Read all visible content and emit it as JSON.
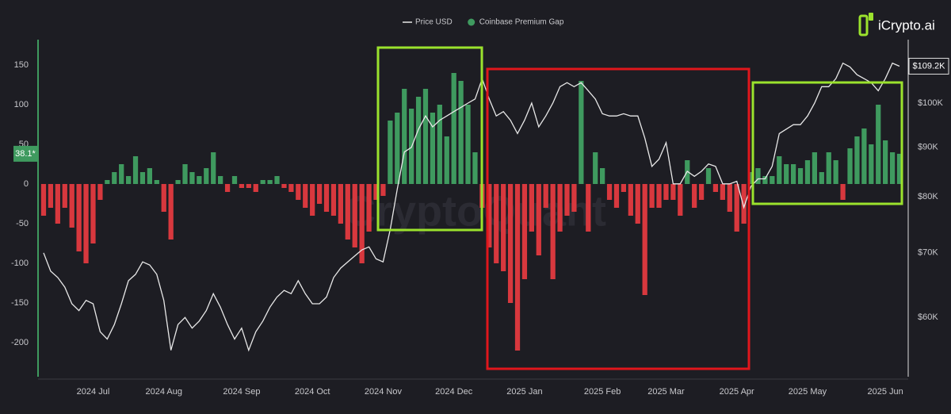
{
  "chart_data": {
    "type": "bar_line",
    "legend_position": "top",
    "logo": "iCrypto.ai",
    "watermark": "CryptoQuant",
    "categories": [
      null,
      null,
      null,
      null,
      null,
      null,
      null,
      "2024 Jul",
      null,
      null,
      null,
      null,
      null,
      null,
      null,
      null,
      null,
      "2024 Aug",
      null,
      null,
      null,
      null,
      null,
      null,
      null,
      null,
      null,
      null,
      "2024 Sep",
      null,
      null,
      null,
      null,
      null,
      null,
      null,
      null,
      null,
      "2024 Oct",
      null,
      null,
      null,
      null,
      null,
      null,
      null,
      null,
      null,
      "2024 Nov",
      null,
      null,
      null,
      null,
      null,
      null,
      null,
      null,
      null,
      "2024 Dec",
      null,
      null,
      null,
      null,
      null,
      null,
      null,
      null,
      null,
      "2025 Jan",
      null,
      null,
      null,
      null,
      null,
      null,
      null,
      null,
      null,
      null,
      "2025 Feb",
      null,
      null,
      null,
      null,
      null,
      null,
      null,
      null,
      "2025 Mar",
      null,
      null,
      null,
      null,
      null,
      null,
      null,
      null,
      null,
      "2025 Apr",
      null,
      null,
      null,
      null,
      null,
      null,
      null,
      null,
      null,
      "2025 May",
      null,
      null,
      null,
      null,
      null,
      null,
      null,
      null,
      null,
      null,
      "2025 Jun",
      null,
      null
    ],
    "ylim": [
      -240,
      175
    ],
    "yticks": [
      -200,
      -150,
      -100,
      -50,
      0,
      50,
      100,
      150
    ],
    "y2lim": [
      52400,
      114800
    ],
    "y2scale": "log",
    "y2ticks": [
      {
        "value": 60000,
        "label": "$60K"
      },
      {
        "value": 70000,
        "label": "$70K"
      },
      {
        "value": 80000,
        "label": "$80K"
      },
      {
        "value": 90000,
        "label": "$90K"
      },
      {
        "value": 100000,
        "label": "$100K"
      }
    ],
    "series": [
      {
        "name": "Price USD",
        "type": "line",
        "axis": "y2",
        "color": "#e8e8e8",
        "marker_label": "$109.2K",
        "values": [
          70000,
          67000,
          66000,
          64500,
          62000,
          61000,
          62500,
          62000,
          58000,
          57000,
          59000,
          62000,
          65500,
          66500,
          68500,
          68000,
          66500,
          62500,
          55500,
          59000,
          60000,
          58500,
          59500,
          61000,
          63500,
          61500,
          59000,
          57000,
          58500,
          55500,
          58000,
          59500,
          61500,
          63000,
          64000,
          63500,
          65500,
          63500,
          62000,
          62000,
          63000,
          66000,
          67500,
          68500,
          69500,
          70500,
          71000,
          69000,
          68500,
          74000,
          81500,
          89000,
          90000,
          94000,
          97000,
          94500,
          96000,
          97000,
          98000,
          99000,
          100000,
          101000,
          106000,
          101000,
          97000,
          98000,
          96000,
          93000,
          96000,
          100000,
          94500,
          97000,
          100000,
          104000,
          105000,
          104000,
          105000,
          103000,
          101000,
          97500,
          97000,
          97000,
          97500,
          97000,
          97000,
          92000,
          86000,
          87500,
          91000,
          82500,
          82500,
          85000,
          84000,
          85000,
          86500,
          86000,
          82500,
          82500,
          83000,
          78000,
          82000,
          83500,
          83500,
          86000,
          93000,
          94000,
          95000,
          95000,
          97000,
          100000,
          104000,
          104000,
          106000,
          110000,
          109000,
          107000,
          106000,
          105000,
          103000,
          106000,
          110000,
          109200
        ]
      },
      {
        "name": "Coinbase Premium Gap",
        "type": "bar",
        "axis": "y",
        "color": "#3f9a5f",
        "negative_color": "#d8383e",
        "marker_label": "38.1*",
        "values": [
          -40,
          -30,
          -50,
          -30,
          -55,
          -85,
          -100,
          -75,
          -20,
          5,
          15,
          25,
          10,
          35,
          15,
          20,
          5,
          -35,
          -70,
          5,
          25,
          15,
          10,
          20,
          40,
          10,
          -10,
          10,
          -5,
          -5,
          -10,
          5,
          5,
          10,
          -5,
          -10,
          -20,
          -30,
          -40,
          -25,
          -35,
          -40,
          -50,
          -70,
          -80,
          -100,
          -60,
          -20,
          -15,
          80,
          90,
          120,
          95,
          110,
          120,
          90,
          100,
          60,
          140,
          130,
          100,
          40,
          -30,
          -80,
          -100,
          -110,
          -150,
          -210,
          -120,
          -60,
          -90,
          -30,
          -120,
          -60,
          -40,
          -35,
          130,
          -60,
          40,
          20,
          -20,
          -30,
          -10,
          -40,
          -50,
          -140,
          -30,
          -30,
          -20,
          -20,
          -40,
          30,
          -30,
          -20,
          20,
          -10,
          -20,
          -35,
          -60,
          -50,
          15,
          20,
          10,
          10,
          35,
          25,
          25,
          20,
          30,
          40,
          15,
          40,
          30,
          -20,
          45,
          60,
          70,
          50,
          100,
          55,
          40,
          38.1
        ]
      }
    ]
  }
}
